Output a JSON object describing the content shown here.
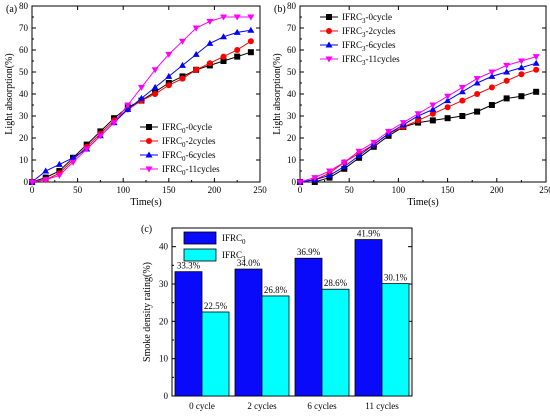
{
  "chart_data": [
    {
      "panel_label": "(a)",
      "type": "line",
      "xlabel": "Time(s)",
      "ylabel": "Light absorption(%)",
      "xlim": [
        0,
        250
      ],
      "ylim": [
        0,
        80
      ],
      "xticks": [
        "0",
        "50",
        "100",
        "150",
        "200",
        "250"
      ],
      "yticks": [
        "0",
        "10",
        "20",
        "30",
        "40",
        "50",
        "60",
        "70",
        "80"
      ],
      "legend_position": "bottom-right",
      "series": [
        {
          "name": "IFRC0-0cycle",
          "base": "IFRC",
          "sub": "0",
          "suffix": "-0cycle",
          "color": "#000000",
          "marker": "square",
          "x": [
            0,
            15,
            30,
            45,
            60,
            75,
            90,
            105,
            120,
            135,
            150,
            165,
            180,
            195,
            210,
            225,
            240
          ],
          "y": [
            0,
            2,
            5,
            11,
            17,
            23,
            29,
            34,
            37,
            41,
            45,
            48,
            51,
            53,
            55,
            57,
            59
          ]
        },
        {
          "name": "IFRC0-2cycles",
          "base": "IFRC",
          "sub": "0",
          "suffix": "-2cycles",
          "color": "#ff0000",
          "marker": "circle",
          "x": [
            0,
            15,
            30,
            45,
            60,
            75,
            90,
            105,
            120,
            135,
            150,
            165,
            180,
            195,
            210,
            225,
            240
          ],
          "y": [
            0,
            1,
            4,
            10,
            16,
            22,
            28,
            33,
            37,
            40,
            44,
            47,
            51,
            54,
            57,
            60,
            64
          ]
        },
        {
          "name": "IFRC0-6cycles",
          "base": "IFRC",
          "sub": "0",
          "suffix": "-6cycles",
          "color": "#0000ff",
          "marker": "triangle",
          "x": [
            0,
            15,
            30,
            45,
            60,
            75,
            90,
            105,
            120,
            135,
            150,
            165,
            180,
            195,
            210,
            225,
            240
          ],
          "y": [
            0,
            5,
            8,
            11,
            15,
            21,
            27,
            33,
            38,
            43,
            48,
            53,
            58,
            63,
            66,
            68,
            69
          ]
        },
        {
          "name": "IFRC0-11cycles",
          "base": "IFRC",
          "sub": "0",
          "suffix": "-11cycles",
          "color": "#ff00ff",
          "marker": "tri-down",
          "x": [
            0,
            15,
            30,
            45,
            60,
            75,
            90,
            105,
            120,
            135,
            150,
            165,
            180,
            195,
            210,
            225,
            240
          ],
          "y": [
            0,
            1,
            3,
            9,
            15,
            21,
            27,
            35,
            43,
            51,
            58,
            64,
            70,
            73,
            75,
            75,
            75
          ]
        }
      ]
    },
    {
      "panel_label": "(b)",
      "type": "line",
      "xlabel": "Time(s)",
      "ylabel": "Light absorption(%)",
      "xlim": [
        0,
        250
      ],
      "ylim": [
        0,
        80
      ],
      "xticks": [
        "0",
        "50",
        "100",
        "150",
        "200",
        "250"
      ],
      "yticks": [
        "0",
        "10",
        "20",
        "30",
        "40",
        "50",
        "60",
        "70",
        "80"
      ],
      "legend_position": "top-left",
      "series": [
        {
          "name": "IFRC3-0cycle",
          "base": "IFRC",
          "sub": "3",
          "suffix": "-0cycle",
          "color": "#000000",
          "marker": "square",
          "x": [
            0,
            15,
            30,
            45,
            60,
            75,
            90,
            105,
            120,
            135,
            150,
            165,
            180,
            195,
            210,
            225,
            240
          ],
          "y": [
            0,
            0,
            2,
            6,
            11,
            16,
            21,
            25,
            27,
            28,
            29,
            30,
            32,
            35,
            38,
            39,
            41
          ]
        },
        {
          "name": "IFRC3-2cycles",
          "base": "IFRC",
          "sub": "3",
          "suffix": "-2cycles",
          "color": "#ff0000",
          "marker": "circle",
          "x": [
            0,
            15,
            30,
            45,
            60,
            75,
            90,
            105,
            120,
            135,
            150,
            165,
            180,
            195,
            210,
            225,
            240
          ],
          "y": [
            0,
            1,
            4,
            9,
            13,
            17,
            22,
            25,
            28,
            31,
            34,
            37,
            40,
            43,
            46,
            49,
            51
          ]
        },
        {
          "name": "IFRC3-6cycles",
          "base": "IFRC",
          "sub": "3",
          "suffix": "-6cycles",
          "color": "#0000ff",
          "marker": "triangle",
          "x": [
            0,
            15,
            30,
            45,
            60,
            75,
            90,
            105,
            120,
            135,
            150,
            165,
            180,
            195,
            210,
            225,
            240
          ],
          "y": [
            0,
            1,
            3,
            7,
            12,
            17,
            22,
            26,
            30,
            33,
            37,
            41,
            45,
            48,
            50,
            52,
            54
          ]
        },
        {
          "name": "IFRC3-11cycles",
          "base": "IFRC",
          "sub": "3",
          "suffix": "-11cycles",
          "color": "#ff00ff",
          "marker": "tri-down",
          "x": [
            0,
            15,
            30,
            45,
            60,
            75,
            90,
            105,
            120,
            135,
            150,
            165,
            180,
            195,
            210,
            225,
            240
          ],
          "y": [
            0,
            2,
            5,
            9,
            14,
            18,
            23,
            27,
            31,
            35,
            39,
            43,
            47,
            50,
            53,
            55,
            57
          ]
        }
      ]
    },
    {
      "panel_label": "(c)",
      "type": "bar",
      "ylabel": "Smoke density rating(%)",
      "ylim": [
        0,
        45
      ],
      "yticks": [
        "0",
        "10",
        "20",
        "30",
        "40"
      ],
      "categories": [
        "0 cycle",
        "2 cycles",
        "6 cycles",
        "11 cycles"
      ],
      "legend_position": "top-left",
      "series": [
        {
          "name": "IFRC0",
          "base": "IFRC",
          "sub": "0",
          "suffix": "",
          "color": "#0a0afa",
          "values": [
            33.3,
            34.0,
            36.9,
            41.9
          ],
          "labels": [
            "33.3%",
            "34.0%",
            "36.9%",
            "41.9%"
          ]
        },
        {
          "name": "IFRC3",
          "base": "IFRC",
          "sub": "3",
          "suffix": "",
          "color": "#00ffff",
          "values": [
            22.5,
            26.8,
            28.6,
            30.1
          ],
          "labels": [
            "22.5%",
            "26.8%",
            "28.6%",
            "30.1%"
          ]
        }
      ]
    }
  ]
}
